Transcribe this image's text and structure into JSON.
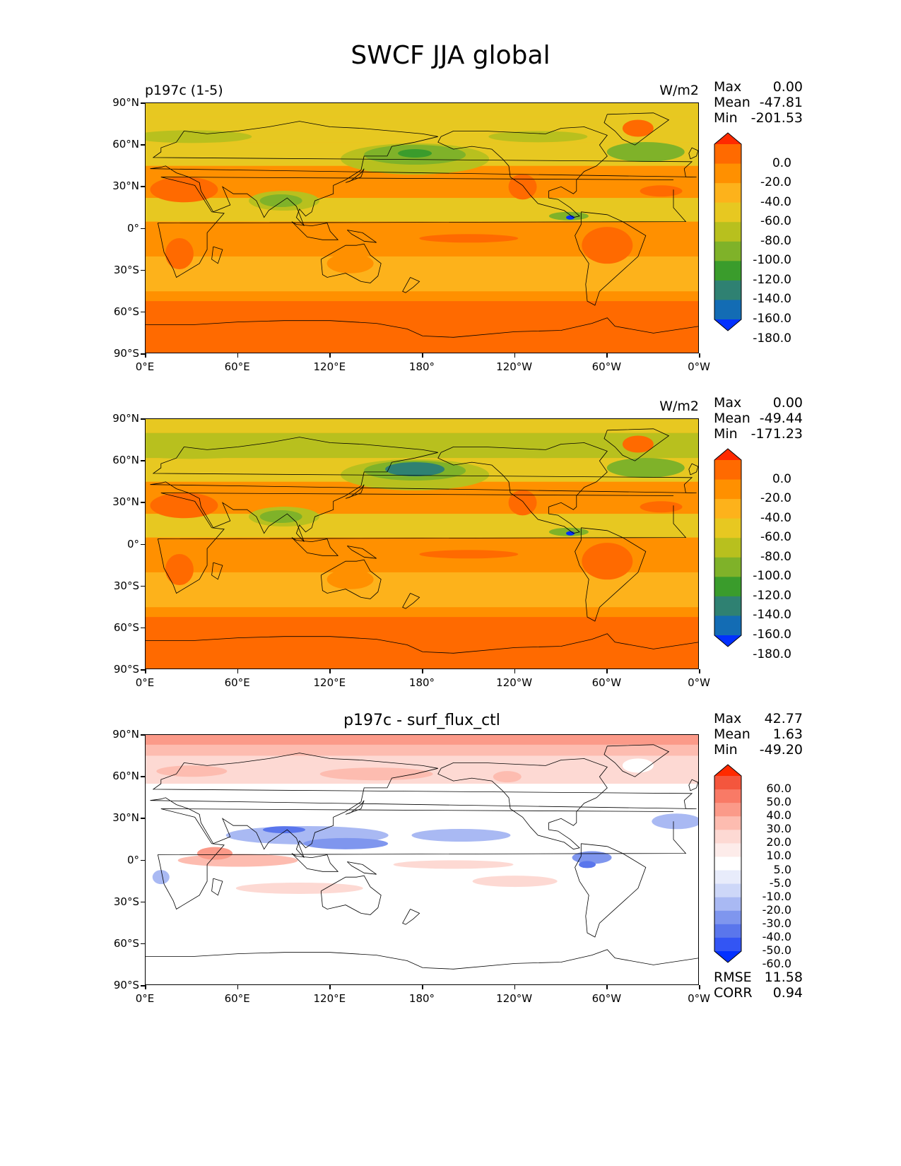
{
  "figure": {
    "title": "SWCF JJA global"
  },
  "panels": [
    {
      "left_label": "p197c (1-5)",
      "center_label": "",
      "units": "W/m2",
      "stats": [
        {
          "name": "Max",
          "value": "0.00"
        },
        {
          "name": "Mean",
          "value": "-47.81"
        },
        {
          "name": "Min",
          "value": "-201.53"
        }
      ],
      "colorbar": {
        "labels": [
          "0.0",
          "-20.0",
          "-40.0",
          "-60.0",
          "-80.0",
          "-100.0",
          "-120.0",
          "-140.0",
          "-160.0",
          "-180.0"
        ],
        "colors": [
          "#ff2a00",
          "#ff6a00",
          "#ff9000",
          "#fdb21b",
          "#e7c821",
          "#b8c01e",
          "#7fb229",
          "#3a9c2c",
          "#2f8172",
          "#136cb4",
          "#0230ff"
        ]
      },
      "field_colors": {
        "land_hot": "#ff6a00",
        "ocean_mid": "#fdb21b",
        "storm": "#3a9c2c",
        "tropics": "#e7c821"
      }
    },
    {
      "left_label": "",
      "center_label": "",
      "units": "W/m2",
      "stats": [
        {
          "name": "Max",
          "value": "0.00"
        },
        {
          "name": "Mean",
          "value": "-49.44"
        },
        {
          "name": "Min",
          "value": "-171.23"
        }
      ],
      "colorbar": {
        "labels": [
          "0.0",
          "-20.0",
          "-40.0",
          "-60.0",
          "-80.0",
          "-100.0",
          "-120.0",
          "-140.0",
          "-160.0",
          "-180.0"
        ],
        "colors": [
          "#ff2a00",
          "#ff6a00",
          "#ff9000",
          "#fdb21b",
          "#e7c821",
          "#b8c01e",
          "#7fb229",
          "#3a9c2c",
          "#2f8172",
          "#136cb4",
          "#0230ff"
        ]
      },
      "field_colors": {
        "land_hot": "#ff6a00",
        "ocean_mid": "#fdb21b",
        "storm": "#3a9c2c",
        "tropics": "#e7c821"
      }
    },
    {
      "left_label": "",
      "center_label": "p197c - surf_flux_ctl",
      "units": "",
      "stats": [
        {
          "name": "Max",
          "value": "42.77"
        },
        {
          "name": "Mean",
          "value": "1.63"
        },
        {
          "name": "Min",
          "value": "-49.20"
        }
      ],
      "colorbar": {
        "labels": [
          "60.0",
          "50.0",
          "40.0",
          "30.0",
          "20.0",
          "10.0",
          "5.0",
          "-5.0",
          "-10.0",
          "-20.0",
          "-30.0",
          "-40.0",
          "-50.0",
          "-60.0"
        ],
        "colors": [
          "#ff2a00",
          "#f4563d",
          "#f97a66",
          "#fb9a89",
          "#fdbcb0",
          "#fdd9d3",
          "#fdecea",
          "#ffffff",
          "#e8ecfb",
          "#cdd7f8",
          "#a9b9f3",
          "#7f96ee",
          "#5a76ec",
          "#3355f4",
          "#0230ff"
        ]
      },
      "bottom_stats": [
        {
          "name": "RMSE",
          "value": "11.58"
        },
        {
          "name": "CORR",
          "value": "0.94"
        }
      ]
    }
  ],
  "axes": {
    "y_ticks": [
      "90°N",
      "60°N",
      "30°N",
      "0°",
      "30°S",
      "60°S",
      "90°S"
    ],
    "x_ticks": [
      "0°E",
      "60°E",
      "120°E",
      "180°",
      "120°W",
      "60°W",
      "0°W"
    ]
  },
  "chart_data": [
    {
      "type": "heatmap",
      "title": "p197c (1-5)",
      "units": "W/m2",
      "xlim": [
        0,
        360
      ],
      "ylim": [
        -90,
        90
      ],
      "x_ticks": [
        "0°E",
        "60°E",
        "120°E",
        "180°",
        "120°W",
        "60°W",
        "0°W"
      ],
      "y_ticks": [
        "90°N",
        "60°N",
        "30°N",
        "0°",
        "30°S",
        "60°S",
        "90°S"
      ],
      "levels": [
        0.0,
        -20.0,
        -40.0,
        -60.0,
        -80.0,
        -100.0,
        -120.0,
        -140.0,
        -160.0,
        -180.0
      ],
      "max": 0.0,
      "mean": -47.81,
      "min": -201.53
    },
    {
      "type": "heatmap",
      "units": "W/m2",
      "xlim": [
        0,
        360
      ],
      "ylim": [
        -90,
        90
      ],
      "x_ticks": [
        "0°E",
        "60°E",
        "120°E",
        "180°",
        "120°W",
        "60°W",
        "0°W"
      ],
      "y_ticks": [
        "90°N",
        "60°N",
        "30°N",
        "0°",
        "30°S",
        "60°S",
        "90°S"
      ],
      "levels": [
        0.0,
        -20.0,
        -40.0,
        -60.0,
        -80.0,
        -100.0,
        -120.0,
        -140.0,
        -160.0,
        -180.0
      ],
      "max": 0.0,
      "mean": -49.44,
      "min": -171.23
    },
    {
      "type": "heatmap",
      "title": "p197c - surf_flux_ctl",
      "xlim": [
        0,
        360
      ],
      "ylim": [
        -90,
        90
      ],
      "x_ticks": [
        "0°E",
        "60°E",
        "120°E",
        "180°",
        "120°W",
        "60°W",
        "0°W"
      ],
      "y_ticks": [
        "90°N",
        "60°N",
        "30°N",
        "0°",
        "30°S",
        "60°S",
        "90°S"
      ],
      "levels": [
        60.0,
        50.0,
        40.0,
        30.0,
        20.0,
        10.0,
        5.0,
        -5.0,
        -10.0,
        -20.0,
        -30.0,
        -40.0,
        -50.0,
        -60.0
      ],
      "max": 42.77,
      "mean": 1.63,
      "min": -49.2,
      "rmse": 11.58,
      "corr": 0.94
    }
  ]
}
